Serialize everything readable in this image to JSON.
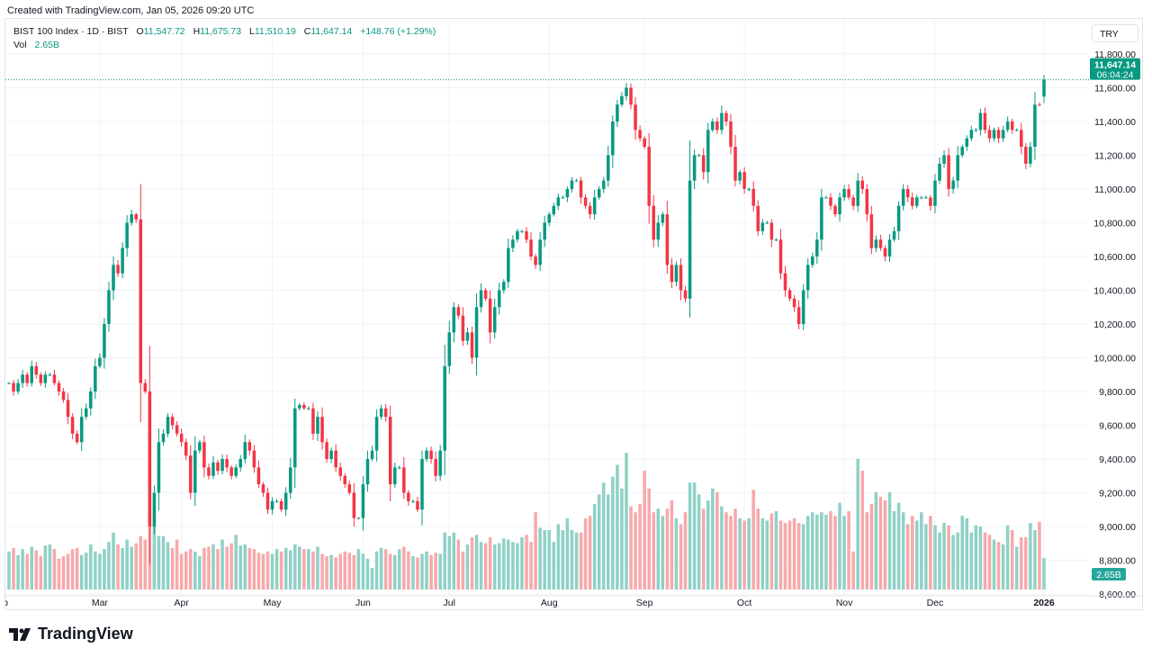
{
  "created_by": "Created with TradingView.com, Jan 05, 2026 09:20 UTC",
  "legend": {
    "symbol": "BIST 100 Index · 1D · BIST",
    "open_label": "O",
    "open": "11,547.72",
    "high_label": "H",
    "high": "11,675.73",
    "low_label": "L",
    "low": "11,510.19",
    "close_label": "C",
    "close": "11,647.14",
    "change": "+148.76 (+1.29%)",
    "vol_label": "Vol",
    "vol": "2.65B"
  },
  "currency": "TRY",
  "last_price_label": "11,647.14",
  "countdown": "06:04:24",
  "vol_badge": "2.65B",
  "brand": "TradingView",
  "colors": {
    "up": "#089981",
    "down": "#f23645",
    "vol_up": "#8fd1c6",
    "vol_down": "#f7a9ab",
    "grid": "#f0f3fa"
  },
  "chart_data": {
    "type": "candlestick",
    "title": "BIST 100 Index · 1D · BIST",
    "ylim": [
      8600,
      11800
    ],
    "yticks": [
      "11,800.00",
      "11,600.00",
      "11,400.00",
      "11,200.00",
      "11,000.00",
      "10,800.00",
      "10,600.00",
      "10,400.00",
      "10,200.00",
      "10,000.00",
      "9,800.00",
      "9,600.00",
      "9,400.00",
      "9,200.00",
      "9,000.00",
      "8,800.00",
      "8,600.00"
    ],
    "ytick_values": [
      11800,
      11600,
      11400,
      11200,
      11000,
      10800,
      10600,
      10400,
      10200,
      10000,
      9800,
      9600,
      9400,
      9200,
      9000,
      8800,
      8600
    ],
    "xticks": [
      {
        "label": "Feb",
        "index": -2
      },
      {
        "label": "Mar",
        "index": 20
      },
      {
        "label": "Apr",
        "index": 38
      },
      {
        "label": "May",
        "index": 58
      },
      {
        "label": "Jun",
        "index": 78
      },
      {
        "label": "Jul",
        "index": 97
      },
      {
        "label": "Aug",
        "index": 119
      },
      {
        "label": "Sep",
        "index": 140
      },
      {
        "label": "Oct",
        "index": 162
      },
      {
        "label": "Nov",
        "index": 184
      },
      {
        "label": "Dec",
        "index": 204
      },
      {
        "label": "2026",
        "index": 228,
        "bold": true
      }
    ],
    "last_candle": {
      "open": 11547.72,
      "high": 11675.73,
      "low": 11510.19,
      "close": 11647.14
    },
    "close": [
      9850,
      9800,
      9850,
      9900,
      9850,
      9950,
      9900,
      9850,
      9900,
      9900,
      9850,
      9800,
      9750,
      9650,
      9550,
      9500,
      9650,
      9700,
      9800,
      9950,
      10000,
      10200,
      10400,
      10550,
      10500,
      10650,
      10800,
      10850,
      10820,
      9850,
      9800,
      9000,
      9200,
      9500,
      9550,
      9650,
      9600,
      9550,
      9500,
      9420,
      9200,
      9450,
      9500,
      9350,
      9300,
      9380,
      9330,
      9400,
      9350,
      9300,
      9350,
      9400,
      9500,
      9450,
      9350,
      9250,
      9200,
      9100,
      9150,
      9150,
      9100,
      9200,
      9350,
      9700,
      9720,
      9700,
      9700,
      9550,
      9650,
      9500,
      9400,
      9450,
      9350,
      9300,
      9250,
      9200,
      9050,
      9050,
      9250,
      9400,
      9450,
      9650,
      9700,
      9650,
      9250,
      9350,
      9350,
      9200,
      9150,
      9150,
      9100,
      9400,
      9450,
      9400,
      9300,
      9450,
      9950,
      10150,
      10300,
      10250,
      10100,
      10150,
      10000,
      10300,
      10400,
      10350,
      10150,
      10300,
      10400,
      10450,
      10650,
      10700,
      10750,
      10750,
      10700,
      10600,
      10550,
      10700,
      10800,
      10850,
      10900,
      10950,
      10950,
      11000,
      11050,
      11050,
      10950,
      10900,
      10850,
      10950,
      11000,
      11050,
      11200,
      11400,
      11500,
      11550,
      11600,
      11500,
      11350,
      11300,
      11250,
      10900,
      10700,
      10800,
      10850,
      10550,
      10450,
      10550,
      10400,
      10350,
      11050,
      11200,
      11200,
      11100,
      11350,
      11400,
      11350,
      11450,
      11400,
      11250,
      11050,
      11100,
      11000,
      11000,
      10900,
      10750,
      10800,
      10800,
      10700,
      10700,
      10500,
      10400,
      10350,
      10300,
      10200,
      10400,
      10550,
      10600,
      10700,
      10950,
      10950,
      10900,
      10850,
      10950,
      11000,
      10950,
      10900,
      11050,
      11000,
      10850,
      10650,
      10700,
      10650,
      10600,
      10700,
      10750,
      10900,
      11000,
      10950,
      10900,
      10950,
      10950,
      10950,
      10900,
      11050,
      11150,
      11200,
      11000,
      11050,
      11200,
      11250,
      11300,
      11350,
      11350,
      11450,
      11350,
      11300,
      11350,
      11300,
      11350,
      11400,
      11350,
      11350,
      11250,
      11150,
      11250,
      11500,
      11498.38,
      11647.14
    ],
    "volume_billions": [
      3.2,
      3.5,
      2.9,
      3.4,
      3.0,
      3.6,
      3.3,
      2.8,
      3.7,
      3.8,
      3.4,
      2.6,
      2.8,
      3.0,
      3.4,
      3.5,
      2.9,
      3.1,
      3.8,
      3.2,
      3.0,
      3.4,
      4.0,
      4.8,
      3.8,
      3.5,
      4.2,
      3.6,
      3.9,
      4.5,
      4.2,
      6.5,
      6.0,
      4.5,
      4.5,
      4.0,
      3.5,
      4.2,
      3.0,
      3.2,
      3.4,
      3.2,
      2.8,
      3.5,
      3.6,
      3.8,
      3.4,
      4.2,
      3.6,
      3.9,
      4.6,
      3.7,
      3.8,
      3.5,
      3.4,
      3.1,
      3.0,
      3.2,
      3.0,
      3.4,
      3.2,
      3.5,
      3.3,
      3.8,
      3.6,
      3.4,
      3.4,
      3.2,
      3.6,
      3.0,
      2.8,
      2.9,
      2.7,
      3.0,
      3.2,
      3.1,
      2.9,
      3.4,
      3.0,
      2.6,
      1.8,
      3.2,
      3.5,
      3.4,
      3.0,
      2.9,
      3.4,
      3.6,
      3.2,
      2.8,
      2.7,
      3.0,
      3.2,
      2.9,
      3.1,
      3.0,
      4.8,
      4.5,
      4.8,
      4.2,
      3.2,
      3.8,
      4.4,
      4.6,
      4.0,
      3.9,
      4.4,
      3.8,
      3.9,
      4.3,
      4.2,
      4.0,
      3.9,
      4.4,
      4.6,
      4.0,
      6.5,
      5.2,
      5.0,
      5.0,
      4.0,
      5.5,
      5.0,
      6.0,
      5.0,
      4.8,
      4.8,
      6.0,
      6.2,
      7.2,
      8.0,
      9.0,
      8.0,
      9.5,
      10.5,
      8.5,
      11.5,
      7.0,
      6.5,
      7.2,
      10.0,
      8.5,
      6.5,
      6.8,
      6.2,
      6.8,
      7.5,
      6.0,
      5.5,
      6.5,
      9.0,
      9.0,
      8.0,
      6.8,
      7.5,
      8.5,
      8.2,
      7.0,
      6.5,
      6.2,
      6.8,
      6.0,
      5.8,
      6.0,
      8.4,
      6.8,
      6.0,
      5.8,
      6.4,
      6.6,
      5.8,
      5.6,
      5.8,
      6.0,
      5.6,
      5.5,
      6.2,
      6.5,
      6.3,
      6.5,
      6.3,
      6.6,
      6.2,
      7.3,
      6.2,
      6.6,
      3.2,
      11.0,
      10.0,
      6.5,
      7.2,
      8.2,
      7.8,
      7.5,
      8.2,
      6.6,
      7.3,
      6.5,
      5.5,
      6.2,
      5.8,
      6.5,
      5.5,
      6.2,
      5.4,
      4.8,
      5.6,
      5.4,
      4.6,
      4.8,
      6.2,
      6.0,
      4.8,
      5.4,
      5.3,
      4.8,
      4.6,
      4.2,
      4.0,
      3.8,
      5.4,
      5.0,
      3.6,
      4.4,
      4.4,
      5.6,
      5.0,
      5.7,
      2.65
    ],
    "grid": true
  }
}
